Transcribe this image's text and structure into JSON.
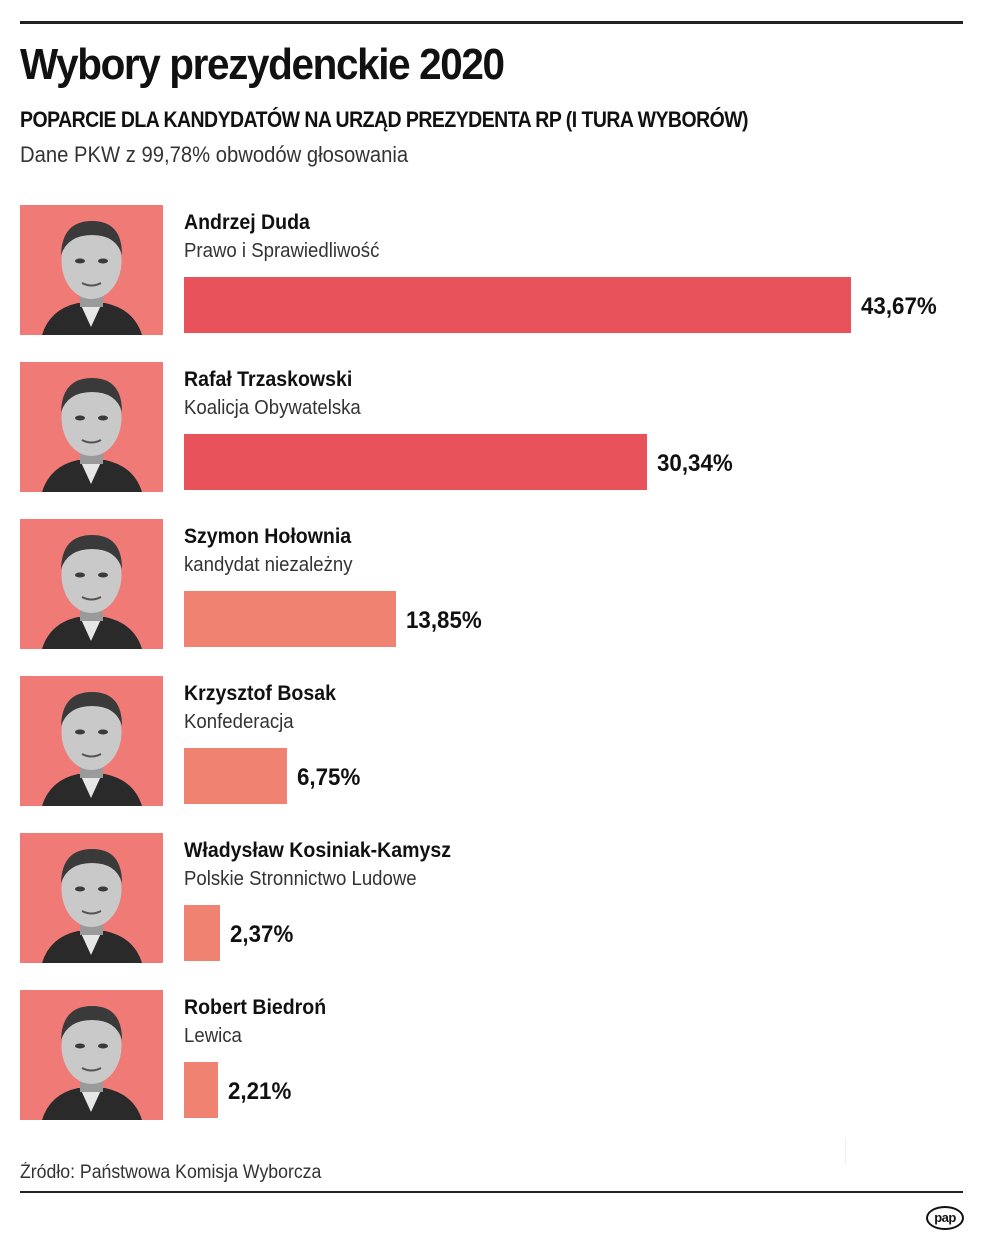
{
  "header": {
    "title": "Wybory prezydenckie 2020",
    "subtitle": "POPARCIE DLA KANDYDATÓW NA URZĄD PREZYDENTA RP (I TURA WYBORÓW)",
    "note": "Dane PKW z 99,78% obwodów głosowania"
  },
  "candidates": [
    {
      "name": "Andrzej Duda",
      "party": "Prawo i Sprawiedliwość",
      "value_label": "43,67%",
      "value": 43.67,
      "color": "#e8535b"
    },
    {
      "name": "Rafał Trzaskowski",
      "party": "Koalicja Obywatelska",
      "value_label": "30,34%",
      "value": 30.34,
      "color": "#e8535b"
    },
    {
      "name": "Szymon Hołownia",
      "party": "kandydat niezależny",
      "value_label": "13,85%",
      "value": 13.85,
      "color": "#ef8270"
    },
    {
      "name": "Krzysztof Bosak",
      "party": "Konfederacja",
      "value_label": "6,75%",
      "value": 6.75,
      "color": "#ef8270"
    },
    {
      "name": "Władysław Kosiniak-Kamysz",
      "party": "Polskie Stronnictwo Ludowe",
      "value_label": "2,37%",
      "value": 2.37,
      "color": "#ef8270"
    },
    {
      "name": "Robert Biedroń",
      "party": "Lewica",
      "value_label": "2,21%",
      "value": 2.21,
      "color": "#ef8270"
    }
  ],
  "footer": {
    "source": "Źródło: Państwowa Komisja Wyborcza",
    "logo": "pap"
  },
  "colors": {
    "photo_background": "#f07a76",
    "bar_top_two": "#e8535b",
    "bar_others": "#ef8270",
    "rule": "#222222"
  },
  "chart_data": {
    "type": "bar",
    "orientation": "horizontal",
    "title": "Wybory prezydenckie 2020",
    "subtitle": "POPARCIE DLA KANDYDATÓW NA URZĄD PREZYDENTA RP (I TURA WYBORÓW)",
    "note": "Dane PKW z 99,78% obwodów głosowania",
    "categories": [
      "Andrzej Duda",
      "Rafał Trzaskowski",
      "Szymon Hołownia",
      "Krzysztof Bosak",
      "Władysław Kosiniak-Kamysz",
      "Robert Biedroń"
    ],
    "category_sublabels": [
      "Prawo i Sprawiedliwość",
      "Koalicja Obywatelska",
      "kandydat niezależny",
      "Konfederacja",
      "Polskie Stronnictwo Ludowe",
      "Lewica"
    ],
    "values": [
      43.67,
      30.34,
      13.85,
      6.75,
      2.37,
      2.21
    ],
    "value_labels": [
      "43,67%",
      "30,34%",
      "13,85%",
      "6,75%",
      "2,37%",
      "2,21%"
    ],
    "unit": "%",
    "xlabel": "",
    "ylabel": "",
    "axis_visible": false,
    "grid": false,
    "legend": null,
    "source": "Źródło: Państwowa Komisja Wyborcza"
  }
}
